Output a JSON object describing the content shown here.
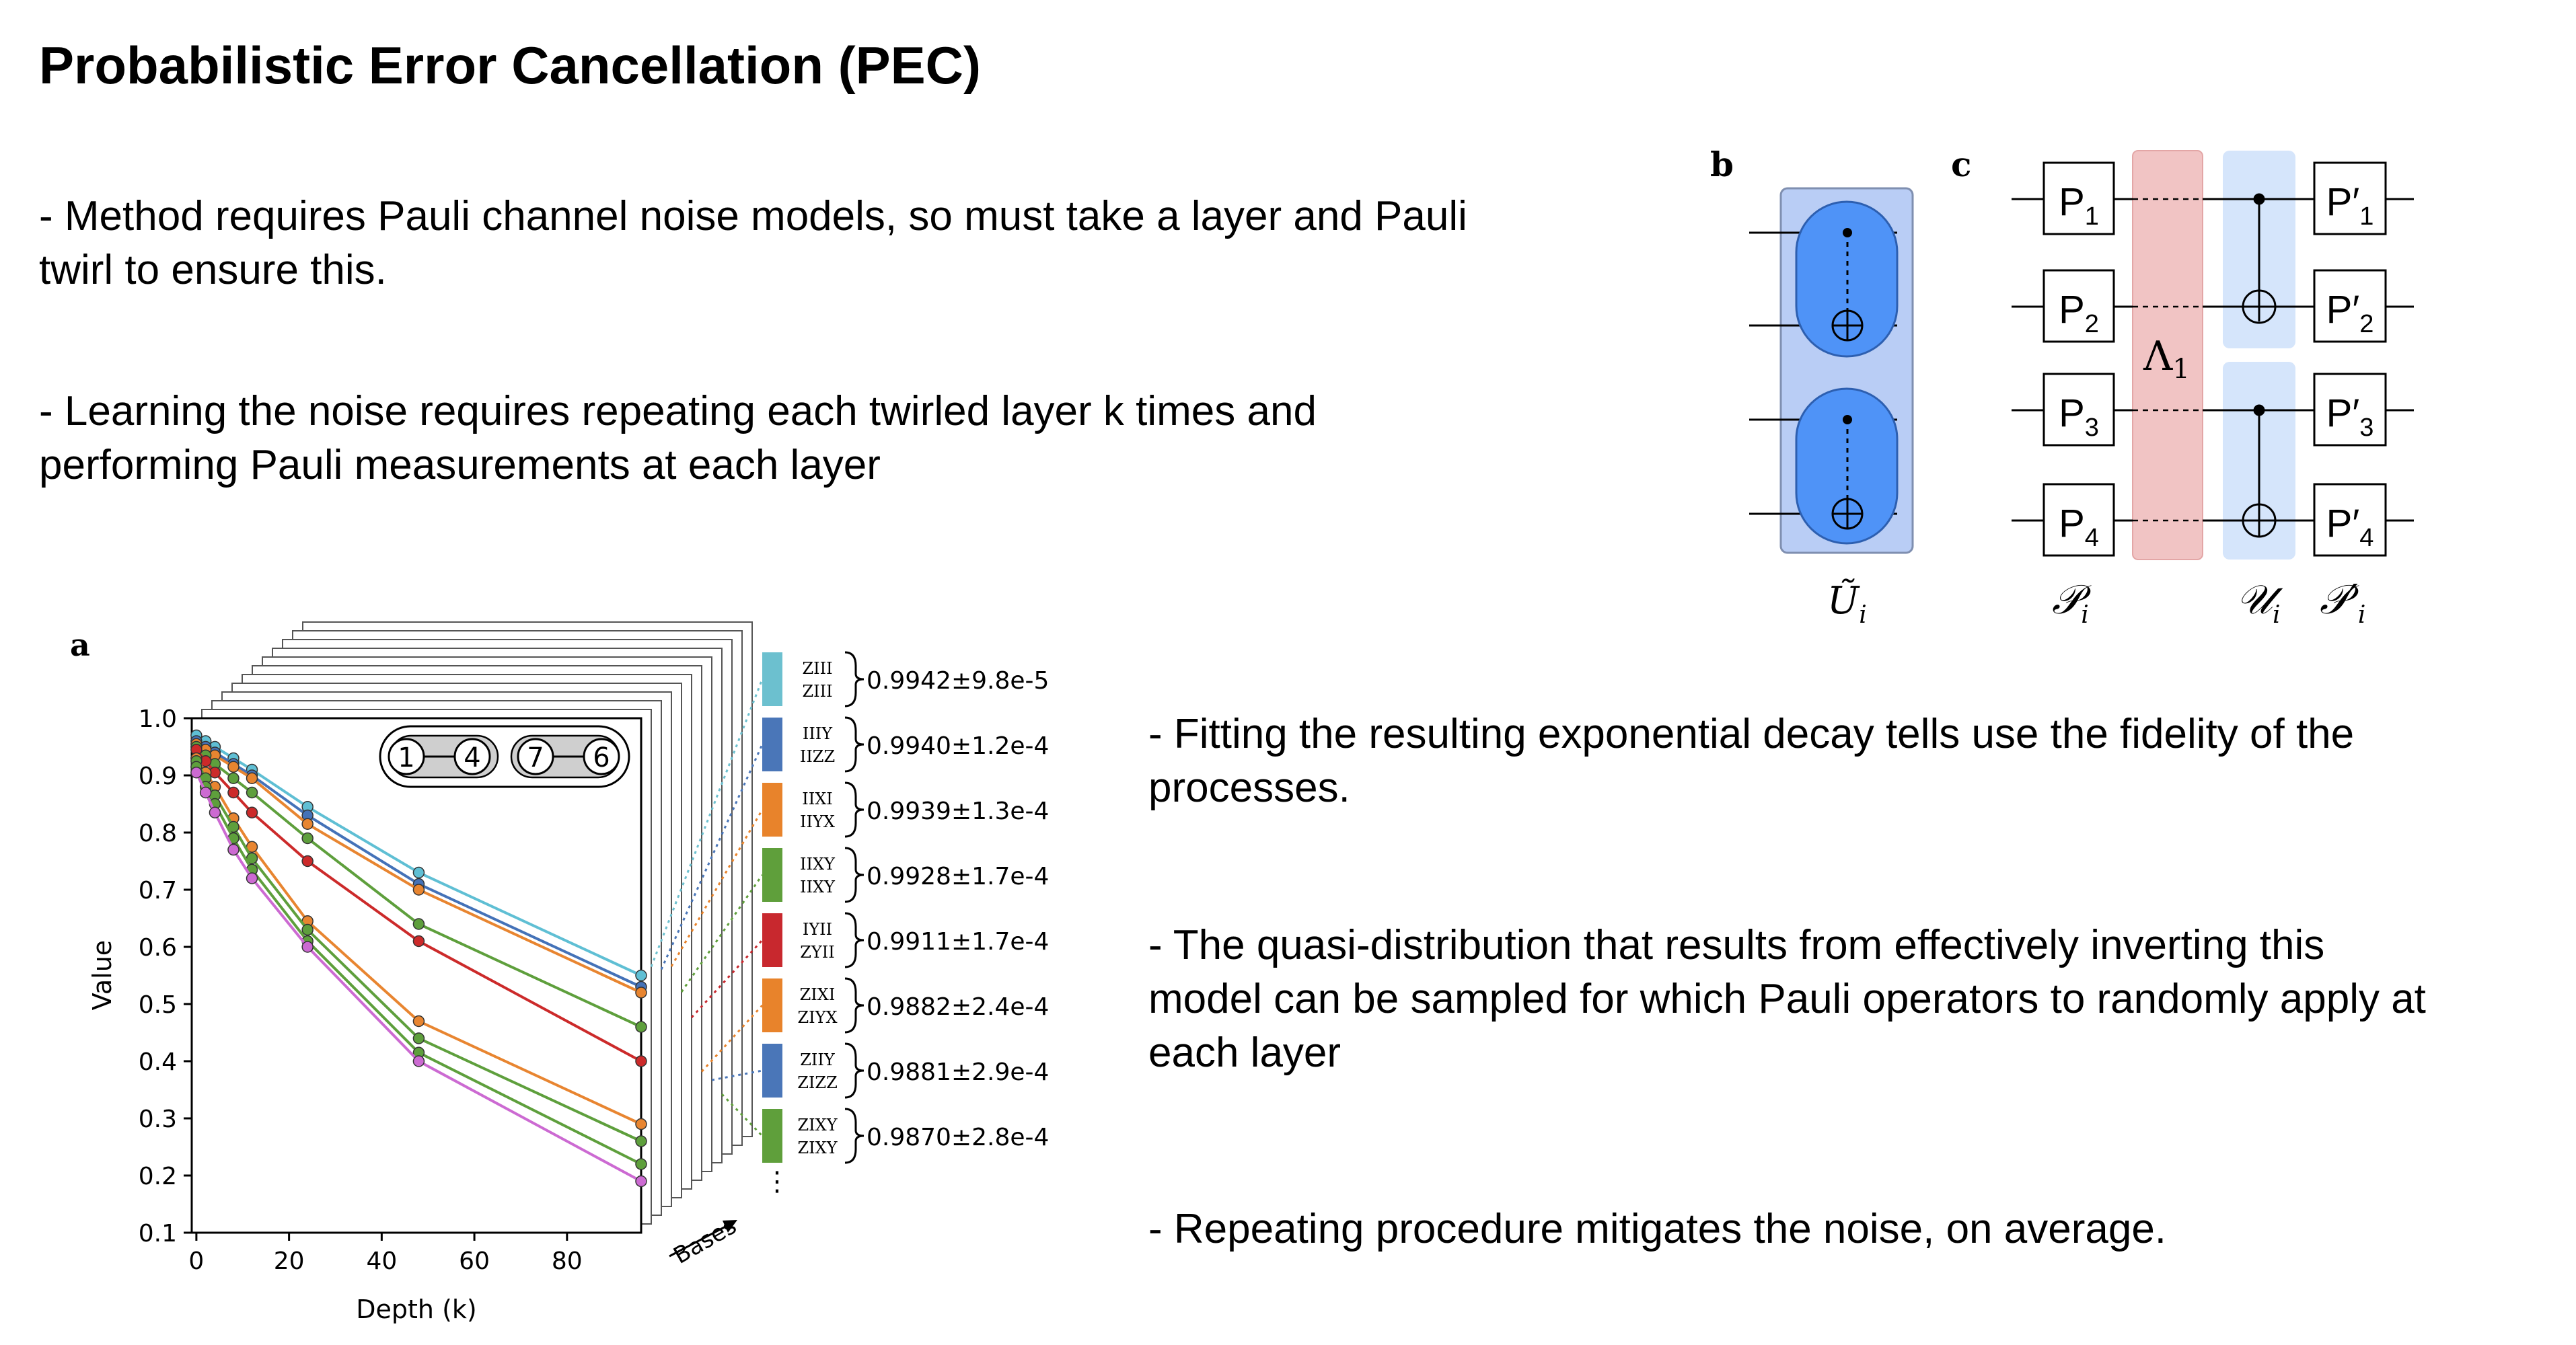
{
  "slide": {
    "title": "Probabilistic Error Cancellation (PEC)",
    "bullets_left": [
      [
        "- Method requires Pauli channel noise models, so must take a layer and Pauli",
        "twirl to ensure this."
      ],
      [
        "- Learning the noise requires repeating each twirled layer k times and",
        "performing Pauli measurements at each layer"
      ]
    ],
    "bullets_right": [
      [
        "- Fitting the resulting exponential decay tells use the fidelity of the",
        "processes."
      ],
      [
        "- The quasi-distribution that results from effectively inverting this",
        "model can be sampled for which Pauli operators to randomly apply at",
        "each layer"
      ],
      [
        "- Repeating procedure mitigates the noise, on average."
      ]
    ]
  },
  "figure_b": {
    "panel_label": "b",
    "caption": "Ũ",
    "caption_sub": "i"
  },
  "figure_c": {
    "panel_label": "c",
    "pauli_in": [
      "P1",
      "P2",
      "P3",
      "P4"
    ],
    "pauli_out": [
      "P'1",
      "P'2",
      "P'3",
      "P'4"
    ],
    "noise_label": "Λ",
    "noise_sub": "1",
    "captions": [
      "𝒫",
      "𝒰",
      "𝒫′"
    ],
    "caption_sub": "i",
    "colors": {
      "noise": "#f1c4c4",
      "gate_band": "#d5e5fb",
      "outer_block": "#b9cdf5",
      "inner_block": "#4f93f7"
    }
  },
  "chart_data": {
    "panel_label": "a",
    "type": "line",
    "xlabel": "Depth (k)",
    "ylabel": "Value",
    "x_ticks": [
      "0",
      "20",
      "40",
      "60",
      "80"
    ],
    "y_ticks": [
      "0.1",
      "0.2",
      "0.3",
      "0.4",
      "0.5",
      "0.6",
      "0.7",
      "0.8",
      "0.9",
      "1.0"
    ],
    "xlim": [
      -1,
      96
    ],
    "ylim": [
      0.1,
      1.0
    ],
    "x": [
      0,
      2,
      4,
      8,
      12,
      24,
      48,
      96
    ],
    "qubit_chain": [
      "1",
      "4",
      "7",
      "6"
    ],
    "stack_label": "Bases",
    "series": [
      {
        "color": "#5fbfd4",
        "values": [
          0.97,
          0.96,
          0.95,
          0.93,
          0.91,
          0.845,
          0.73,
          0.55
        ]
      },
      {
        "color": "#4472b8",
        "values": [
          0.96,
          0.95,
          0.94,
          0.92,
          0.9,
          0.83,
          0.71,
          0.53
        ]
      },
      {
        "color": "#e88530",
        "values": [
          0.955,
          0.945,
          0.935,
          0.915,
          0.895,
          0.815,
          0.7,
          0.52
        ]
      },
      {
        "color": "#5e9f3c",
        "values": [
          0.95,
          0.935,
          0.92,
          0.895,
          0.87,
          0.79,
          0.64,
          0.46
        ]
      },
      {
        "color": "#cc2a2a",
        "values": [
          0.945,
          0.925,
          0.905,
          0.87,
          0.835,
          0.75,
          0.61,
          0.4
        ]
      },
      {
        "color": "#e88530",
        "values": [
          0.93,
          0.905,
          0.88,
          0.825,
          0.775,
          0.645,
          0.47,
          0.29
        ]
      },
      {
        "color": "#5e9f3c",
        "values": [
          0.925,
          0.895,
          0.865,
          0.81,
          0.755,
          0.63,
          0.44,
          0.26
        ]
      },
      {
        "color": "#5e9f3c",
        "values": [
          0.915,
          0.88,
          0.85,
          0.79,
          0.735,
          0.61,
          0.415,
          0.22
        ]
      },
      {
        "color": "#cc6ad2",
        "values": [
          0.905,
          0.87,
          0.835,
          0.77,
          0.72,
          0.6,
          0.4,
          0.19
        ]
      }
    ],
    "legend": [
      {
        "top": "ZIII",
        "bottom": "ZIII",
        "value": "0.9942±9.8e-5",
        "color": "#6cc0cf"
      },
      {
        "top": "IIIY",
        "bottom": "IIZZ",
        "value": "0.9940±1.2e-4",
        "color": "#4a76b8"
      },
      {
        "top": "IIXI",
        "bottom": "IIYX",
        "value": "0.9939±1.3e-4",
        "color": "#e8832b"
      },
      {
        "top": "IIXY",
        "bottom": "IIXY",
        "value": "0.9928±1.7e-4",
        "color": "#5f9f3b"
      },
      {
        "top": "IYII",
        "bottom": "ZYII",
        "value": "0.9911±1.7e-4",
        "color": "#c8282e"
      },
      {
        "top": "ZIXI",
        "bottom": "ZIYX",
        "value": "0.9882±2.4e-4",
        "color": "#e8832b"
      },
      {
        "top": "ZIIY",
        "bottom": "ZIZZ",
        "value": "0.9881±2.9e-4",
        "color": "#4a76b8"
      },
      {
        "top": "ZIXY",
        "bottom": "ZIXY",
        "value": "0.9870±2.8e-4",
        "color": "#5f9f3b"
      }
    ],
    "ellipsis": "⋮"
  }
}
